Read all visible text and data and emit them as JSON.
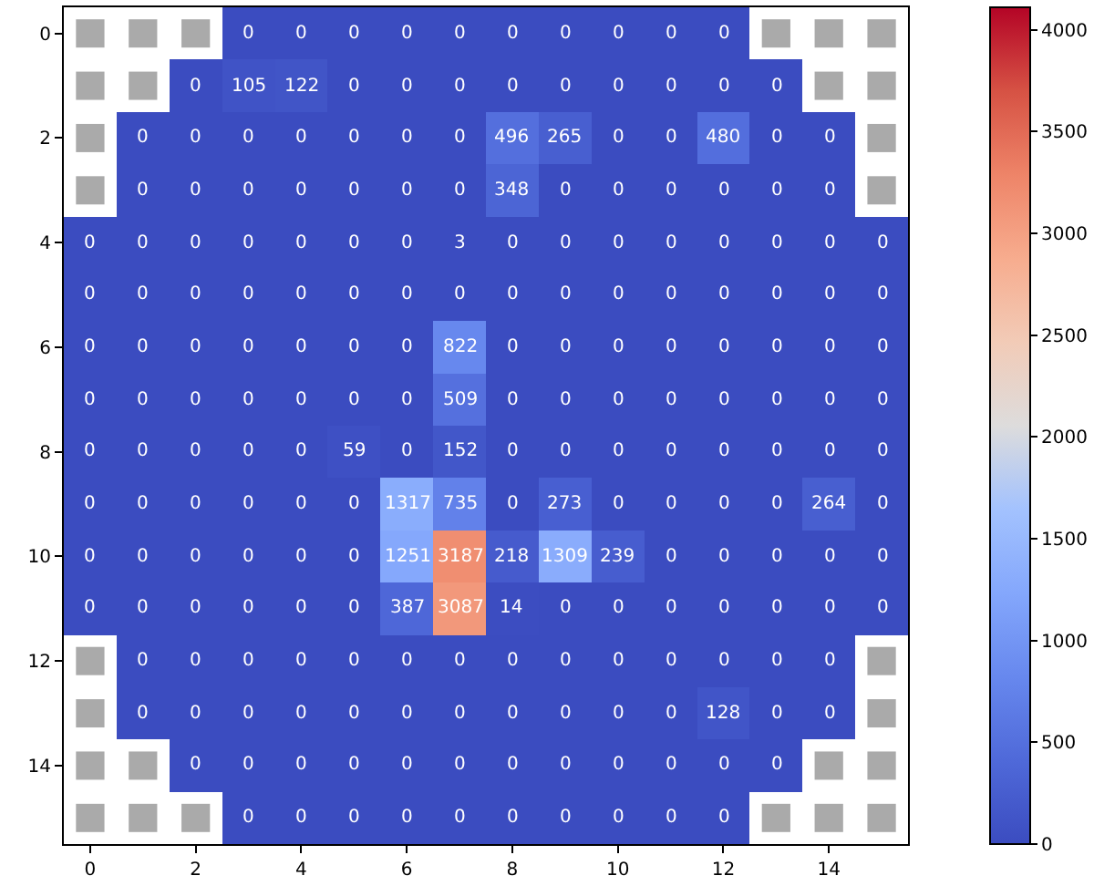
{
  "chart_data": {
    "type": "heatmap",
    "categories": [
      "0",
      null,
      "2",
      null,
      "4",
      null,
      "6",
      null,
      "8",
      null,
      "10",
      null,
      "12",
      null,
      "14",
      null
    ],
    "y_categories": [
      "0",
      null,
      "2",
      null,
      "4",
      null,
      "6",
      null,
      "8",
      null,
      "10",
      null,
      "12",
      null,
      "14",
      null
    ],
    "cells": [
      [
        null,
        null,
        null,
        0,
        0,
        0,
        0,
        0,
        0,
        0,
        0,
        0,
        0,
        null,
        null,
        null
      ],
      [
        null,
        null,
        0,
        105,
        122,
        0,
        0,
        0,
        0,
        0,
        0,
        0,
        0,
        0,
        null,
        null
      ],
      [
        null,
        0,
        0,
        0,
        0,
        0,
        0,
        0,
        496,
        265,
        0,
        0,
        480,
        0,
        0,
        null
      ],
      [
        null,
        0,
        0,
        0,
        0,
        0,
        0,
        0,
        348,
        0,
        0,
        0,
        0,
        0,
        0,
        null
      ],
      [
        0,
        0,
        0,
        0,
        0,
        0,
        0,
        3,
        0,
        0,
        0,
        0,
        0,
        0,
        0,
        0
      ],
      [
        0,
        0,
        0,
        0,
        0,
        0,
        0,
        0,
        0,
        0,
        0,
        0,
        0,
        0,
        0,
        0
      ],
      [
        0,
        0,
        0,
        0,
        0,
        0,
        0,
        822,
        0,
        0,
        0,
        0,
        0,
        0,
        0,
        0
      ],
      [
        0,
        0,
        0,
        0,
        0,
        0,
        0,
        509,
        0,
        0,
        0,
        0,
        0,
        0,
        0,
        0
      ],
      [
        0,
        0,
        0,
        0,
        0,
        59,
        0,
        152,
        0,
        0,
        0,
        0,
        0,
        0,
        0,
        0
      ],
      [
        0,
        0,
        0,
        0,
        0,
        0,
        1317,
        735,
        0,
        273,
        0,
        0,
        0,
        0,
        264,
        0
      ],
      [
        0,
        0,
        0,
        0,
        0,
        0,
        1251,
        3187,
        218,
        1309,
        239,
        0,
        0,
        0,
        0,
        0
      ],
      [
        0,
        0,
        0,
        0,
        0,
        0,
        387,
        3087,
        14,
        0,
        0,
        0,
        0,
        0,
        0,
        0
      ],
      [
        null,
        0,
        0,
        0,
        0,
        0,
        0,
        0,
        0,
        0,
        0,
        0,
        0,
        0,
        0,
        null
      ],
      [
        null,
        0,
        0,
        0,
        0,
        0,
        0,
        0,
        0,
        0,
        0,
        0,
        128,
        0,
        0,
        null
      ],
      [
        null,
        null,
        0,
        0,
        0,
        0,
        0,
        0,
        0,
        0,
        0,
        0,
        0,
        0,
        null,
        null
      ],
      [
        null,
        null,
        null,
        0,
        0,
        0,
        0,
        0,
        0,
        0,
        0,
        0,
        0,
        null,
        null,
        null
      ]
    ],
    "clim": [
      0,
      4110
    ],
    "cticks": [
      0,
      500,
      1000,
      1500,
      2000,
      2500,
      3000,
      3500,
      4000
    ],
    "data_labels": true
  }
}
